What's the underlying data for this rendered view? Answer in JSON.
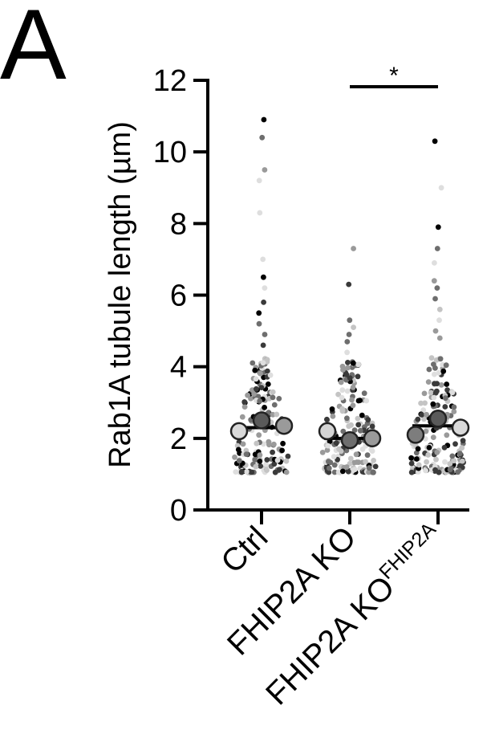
{
  "panel_label": "A",
  "chart_data": {
    "type": "scatter",
    "subtype": "superplot (individual measurements with replicate means and overall mean line)",
    "title": "",
    "ylabel": "Rab1A tubule length (µm)",
    "xlabel": "",
    "ylim": [
      0,
      12
    ],
    "yticks": [
      0,
      2,
      4,
      6,
      8,
      10,
      12
    ],
    "ytick_labels": [
      "0",
      "2",
      "4",
      "6",
      "8",
      "10",
      "12"
    ],
    "grid": false,
    "legend": "none",
    "categories": [
      {
        "label": "Ctrl",
        "sup": ""
      },
      {
        "label": "FHIP2A KO",
        "sup": ""
      },
      {
        "label": "FHIP2A KO",
        "sup": "FHIP2A"
      }
    ],
    "group_means": [
      2.3,
      2.0,
      2.35
    ],
    "replicate_means": [
      [
        {
          "value": 2.5,
          "shade": "#5a5a5a"
        },
        {
          "value": 2.2,
          "shade": "#d9d9d9"
        },
        {
          "value": 2.35,
          "shade": "#9a9a9a"
        }
      ],
      [
        {
          "value": 1.95,
          "shade": "#6e6e6e"
        },
        {
          "value": 2.2,
          "shade": "#d4d4d4"
        },
        {
          "value": 2.0,
          "shade": "#9a9a9a"
        }
      ],
      [
        {
          "value": 2.55,
          "shade": "#5a5a5a"
        },
        {
          "value": 2.1,
          "shade": "#7d7d7d"
        },
        {
          "value": 2.3,
          "shade": "#d9d9d9"
        }
      ]
    ],
    "notable_points": [
      [
        10.9,
        10.4,
        9.5,
        9.2,
        8.3,
        7.0,
        6.5,
        6.2,
        5.8,
        5.5,
        5.2,
        4.9,
        4.6
      ],
      [
        7.3,
        6.3,
        5.3,
        5.1,
        4.9,
        4.7,
        4.4,
        4.1
      ],
      [
        10.3,
        9.0,
        7.9,
        7.3,
        6.9,
        6.4,
        6.2,
        5.9,
        5.6,
        5.3,
        5.0,
        4.8
      ]
    ],
    "points_per_group": 180,
    "point_shades": [
      "#000000",
      "#3a3a3a",
      "#6e6e6e",
      "#9a9a9a",
      "#c4c4c4",
      "#dedede"
    ],
    "significance": [
      {
        "from": 1,
        "to": 2,
        "label": "*"
      }
    ]
  }
}
